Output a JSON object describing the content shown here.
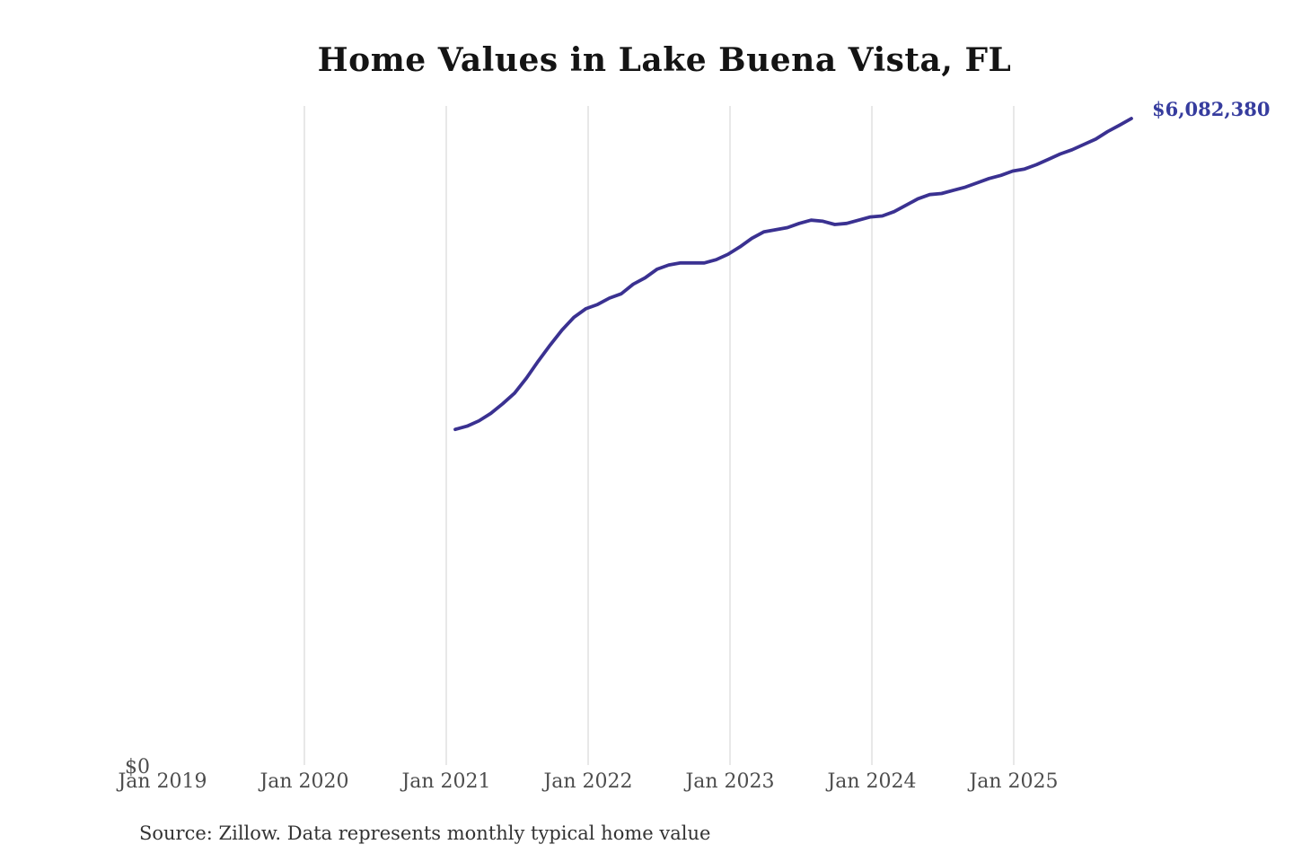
{
  "page": {
    "background": "#ffffff"
  },
  "title": "Home Values in Lake Buena Vista, FL",
  "annotation": {
    "latest_value_label": "$6,082,380"
  },
  "y_axis": {
    "zero_label": "$0"
  },
  "source_note": "Source: Zillow. Data represents monthly typical home value",
  "chart_data": {
    "type": "line",
    "title": "Home Values in Lake Buena Vista, FL",
    "series_name": "Monthly typical home value",
    "xlabel": "",
    "ylabel": "",
    "ylim": [
      0,
      6082380
    ],
    "grid": "vertical-only",
    "legend": "none",
    "x_tick_labels": [
      "Jan 2019",
      "Jan 2020",
      "Jan 2021",
      "Jan 2022",
      "Jan 2023",
      "Jan 2024",
      "Jan 2025"
    ],
    "gridlines_for_ticks": [
      false,
      true,
      true,
      true,
      true,
      true,
      true
    ],
    "end_point_label": "$6,082,380",
    "end_point_value": 6082380,
    "line_color": "#3a3191",
    "annotation_color": "#363c9e",
    "gridline_color": "#d2d2d2",
    "x": [
      "Jan 2021",
      "Feb 2021",
      "Mar 2021",
      "Apr 2021",
      "May 2021",
      "Jun 2021",
      "Jul 2021",
      "Aug 2021",
      "Sep 2021",
      "Oct 2021",
      "Nov 2021",
      "Dec 2021",
      "Jan 2022",
      "Feb 2022",
      "Mar 2022",
      "Apr 2022",
      "May 2022",
      "Jun 2022",
      "Jul 2022",
      "Aug 2022",
      "Sep 2022",
      "Oct 2022",
      "Nov 2022",
      "Dec 2022",
      "Jan 2023",
      "Feb 2023",
      "Mar 2023",
      "Apr 2023",
      "May 2023",
      "Jun 2023",
      "Jul 2023",
      "Aug 2023",
      "Sep 2023",
      "Oct 2023",
      "Nov 2023",
      "Dec 2023",
      "Jan 2024",
      "Feb 2024",
      "Mar 2024",
      "Apr 2024",
      "May 2024",
      "Jun 2024",
      "Jul 2024",
      "Aug 2024",
      "Sep 2024",
      "Oct 2024",
      "Nov 2024",
      "Dec 2024",
      "Jan 2025",
      "Feb 2025",
      "Mar 2025",
      "Apr 2025",
      "May 2025",
      "Jun 2025",
      "Jul 2025",
      "Aug 2025",
      "Sep 2025",
      "Oct 2025"
    ],
    "values": [
      3170000,
      3200000,
      3250000,
      3320000,
      3410000,
      3510000,
      3650000,
      3810000,
      3960000,
      4100000,
      4220000,
      4300000,
      4340000,
      4400000,
      4440000,
      4530000,
      4590000,
      4670000,
      4710000,
      4730000,
      4730000,
      4730000,
      4760000,
      4810000,
      4880000,
      4960000,
      5020000,
      5040000,
      5060000,
      5100000,
      5130000,
      5120000,
      5090000,
      5100000,
      5130000,
      5160000,
      5170000,
      5210000,
      5270000,
      5330000,
      5370000,
      5380000,
      5410000,
      5440000,
      5480000,
      5520000,
      5550000,
      5590000,
      5610000,
      5650000,
      5700000,
      5750000,
      5790000,
      5840000,
      5890000,
      5960000,
      6020000,
      6082380
    ]
  }
}
